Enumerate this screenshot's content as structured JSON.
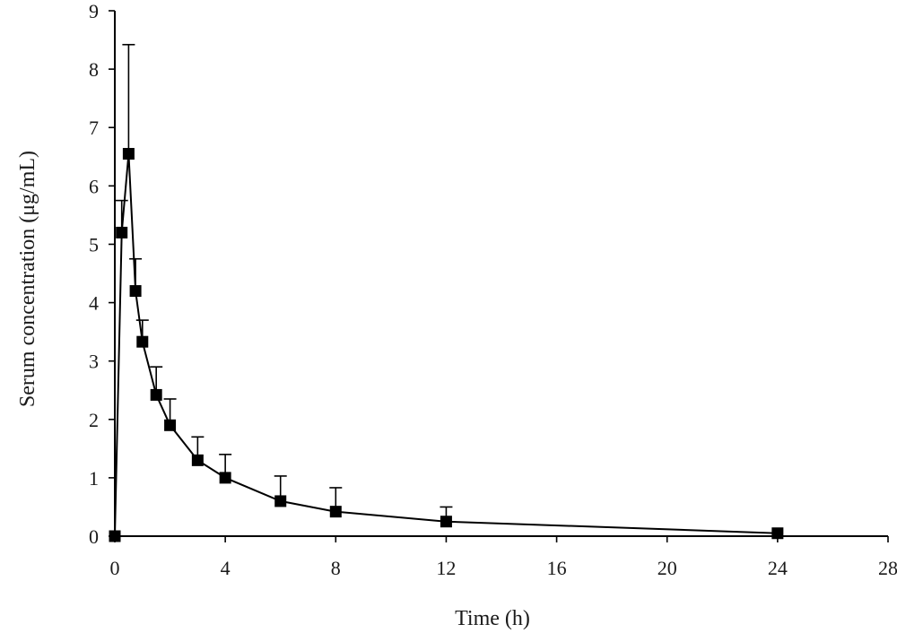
{
  "chart_data": {
    "type": "line",
    "xlabel": "Time (h)",
    "ylabel": "Serum concentration (μg/mL)",
    "xlim": [
      0,
      28
    ],
    "ylim": [
      0,
      9
    ],
    "xticks": [
      0,
      4,
      8,
      12,
      16,
      20,
      24,
      28
    ],
    "yticks": [
      0,
      1,
      2,
      3,
      4,
      5,
      6,
      7,
      8,
      9
    ],
    "grid": false,
    "series": [
      {
        "marker": "square",
        "color": "#000000",
        "x": [
          0,
          0.25,
          0.5,
          0.75,
          1,
          1.5,
          2,
          3,
          4,
          6,
          8,
          12,
          24
        ],
        "y": [
          0,
          5.2,
          6.55,
          4.2,
          3.33,
          2.42,
          1.9,
          1.3,
          1.0,
          0.6,
          0.42,
          0.25,
          0.05
        ],
        "error_upper": [
          0,
          5.75,
          8.42,
          4.75,
          3.7,
          2.9,
          2.35,
          1.7,
          1.4,
          1.03,
          0.83,
          0.5,
          0.07
        ]
      }
    ]
  }
}
